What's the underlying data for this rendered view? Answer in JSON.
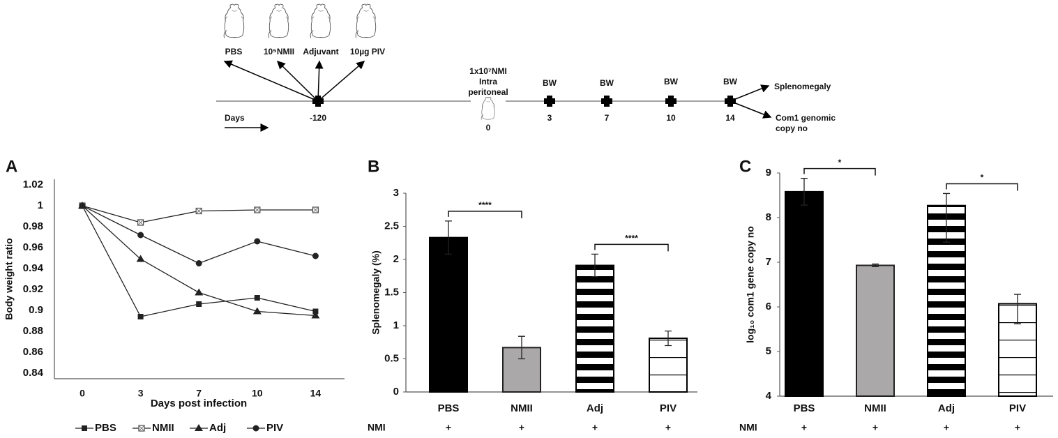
{
  "diagram": {
    "treatments": [
      "PBS",
      "10⁵NMII",
      "Adjuvant",
      "10µg PIV"
    ],
    "days_label": "Days",
    "start_day": "-120",
    "challenge": [
      "1x10⁷NMI",
      "Intra",
      "peritoneal"
    ],
    "challenge_day": "0",
    "measure": "BW",
    "measure_days": [
      "3",
      "7",
      "10",
      "14"
    ],
    "outcome_1": "Splenomegaly",
    "outcome_2": [
      "Com1 genomic",
      "copy no"
    ]
  },
  "chart_data": [
    {
      "type": "line",
      "panel_label": "A",
      "xlabel": "Days post infection",
      "ylabel": "Body weight ratio",
      "categories": [
        "0",
        "3",
        "7",
        "10",
        "14"
      ],
      "series": [
        {
          "name": "PBS",
          "color": "#222222",
          "marker": "square",
          "values": [
            1,
            0.894,
            0.906,
            0.912,
            0.899
          ]
        },
        {
          "name": "NMII",
          "color": "#222222",
          "marker": "x-square",
          "values": [
            1,
            0.984,
            0.995,
            0.996,
            0.996
          ]
        },
        {
          "name": "Adj",
          "color": "#222222",
          "marker": "triangle",
          "values": [
            1,
            0.949,
            0.917,
            0.899,
            0.895
          ]
        },
        {
          "name": "PIV",
          "color": "#222222",
          "marker": "circle",
          "values": [
            1,
            0.972,
            0.945,
            0.966,
            0.952
          ]
        }
      ],
      "ylim": [
        0.84,
        1.02
      ],
      "yticks": [
        0.84,
        0.86,
        0.88,
        0.9,
        0.92,
        0.94,
        0.96,
        0.98,
        1,
        1.02
      ],
      "legend": "bottom"
    },
    {
      "type": "bar",
      "panel_label": "B",
      "ylabel": "Splenomegaly (%)",
      "categories": [
        "PBS",
        "NMII",
        "Adj",
        "PIV"
      ],
      "values": [
        2.33,
        0.67,
        1.91,
        0.81
      ],
      "error_minus": [
        0.25,
        0.17,
        0.17,
        0.11
      ],
      "error_plus": [
        0.25,
        0.17,
        0.17,
        0.11
      ],
      "colors": [
        "#000000",
        "#aaa8a8",
        "#000000",
        "#000000"
      ],
      "patterns": [
        "solid",
        "solid",
        "stripes",
        "lines"
      ],
      "ylim": [
        0,
        3
      ],
      "yticks": [
        0,
        0.5,
        1,
        1.5,
        2,
        2.5,
        3
      ],
      "significance": [
        {
          "from": 0,
          "to": 1,
          "label": "****"
        },
        {
          "from": 2,
          "to": 3,
          "label": "****"
        }
      ],
      "row_label": "NMI",
      "row_values": [
        "+",
        "+",
        "+",
        "+"
      ]
    },
    {
      "type": "bar",
      "panel_label": "C",
      "ylabel": "log₁₀ com1 gene  copy no",
      "categories": [
        "PBS",
        "NMII",
        "Adj",
        "PIV"
      ],
      "values": [
        8.58,
        6.93,
        8.27,
        6.07
      ],
      "error_minus": [
        0.3,
        0.03,
        0.82,
        0.45
      ],
      "error_plus": [
        0.3,
        0.03,
        0.27,
        0.21
      ],
      "colors": [
        "#000000",
        "#aaa8a8",
        "#000000",
        "#000000"
      ],
      "patterns": [
        "solid",
        "solid",
        "stripes",
        "lines"
      ],
      "ylim": [
        4,
        9
      ],
      "yticks": [
        4,
        5,
        6,
        7,
        8,
        9
      ],
      "significance": [
        {
          "from": 0,
          "to": 1,
          "label": "*"
        },
        {
          "from": 2,
          "to": 3,
          "label": "*"
        }
      ],
      "row_label": "NMI",
      "row_values": [
        "+",
        "+",
        "+",
        "+"
      ]
    }
  ]
}
